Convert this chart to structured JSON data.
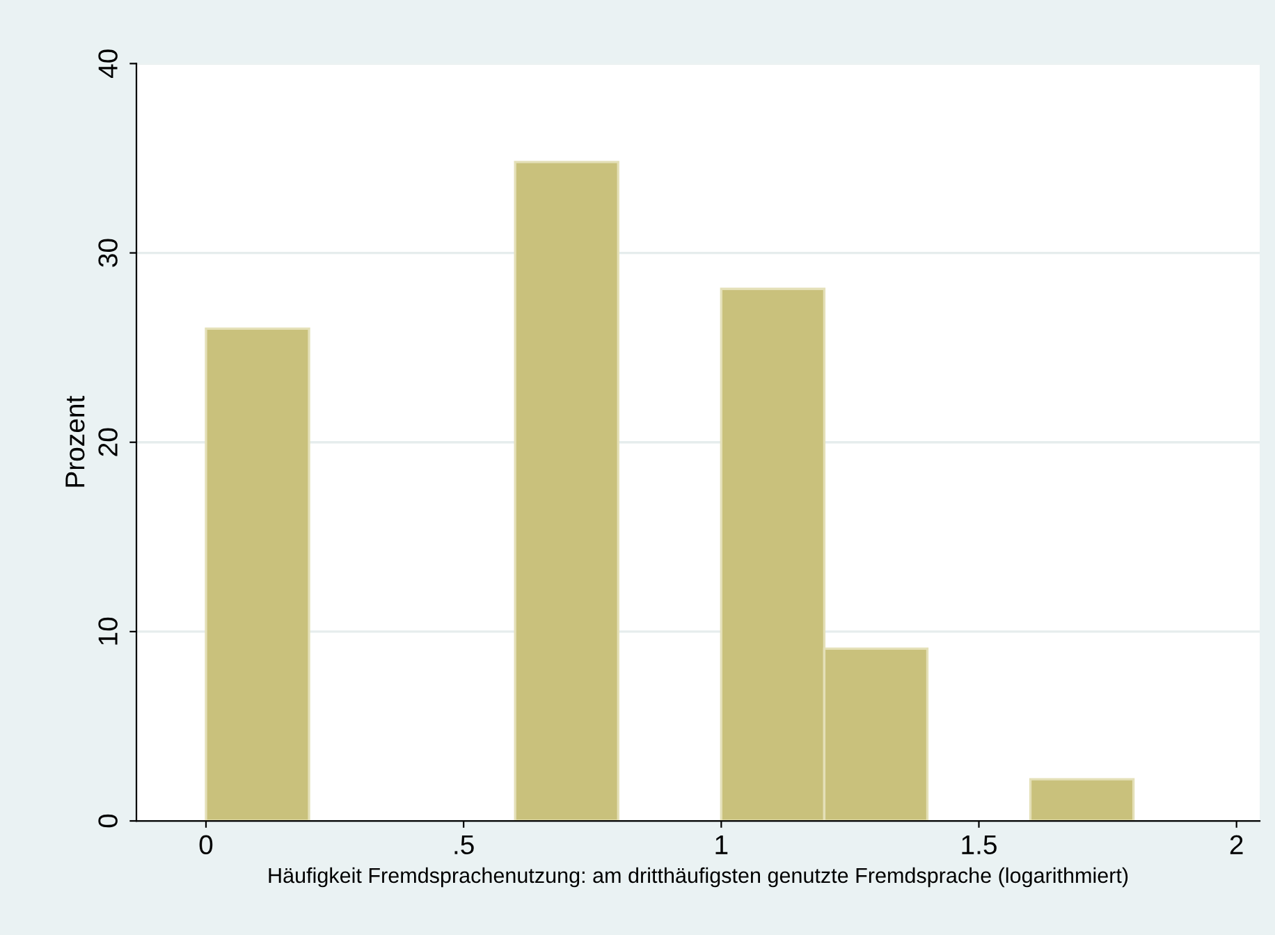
{
  "chart_data": {
    "type": "histogram",
    "xlabel": "Häufigkeit Fremdsprachenutzung: am dritthäufigsten genutzte Fremdsprache (logarithmiert)",
    "ylabel": "Prozent",
    "bins": [
      0,
      0.2,
      0.4,
      0.6,
      0.8,
      1.0,
      1.2,
      1.4,
      1.6,
      1.8
    ],
    "values": [
      26,
      0,
      0,
      34.8,
      0,
      28.1,
      9.1,
      0,
      2.2
    ],
    "color": "#c9c17c",
    "xlim": [
      -0.135,
      2.045
    ],
    "ylim": [
      0,
      40
    ],
    "xticks": [
      0,
      {
        "value": 0.5,
        "label": ".5"
      },
      1,
      {
        "value": 1.5,
        "label": "1.5"
      },
      2
    ],
    "yticks": [
      0,
      10,
      20,
      30,
      40
    ],
    "grid": "y"
  }
}
